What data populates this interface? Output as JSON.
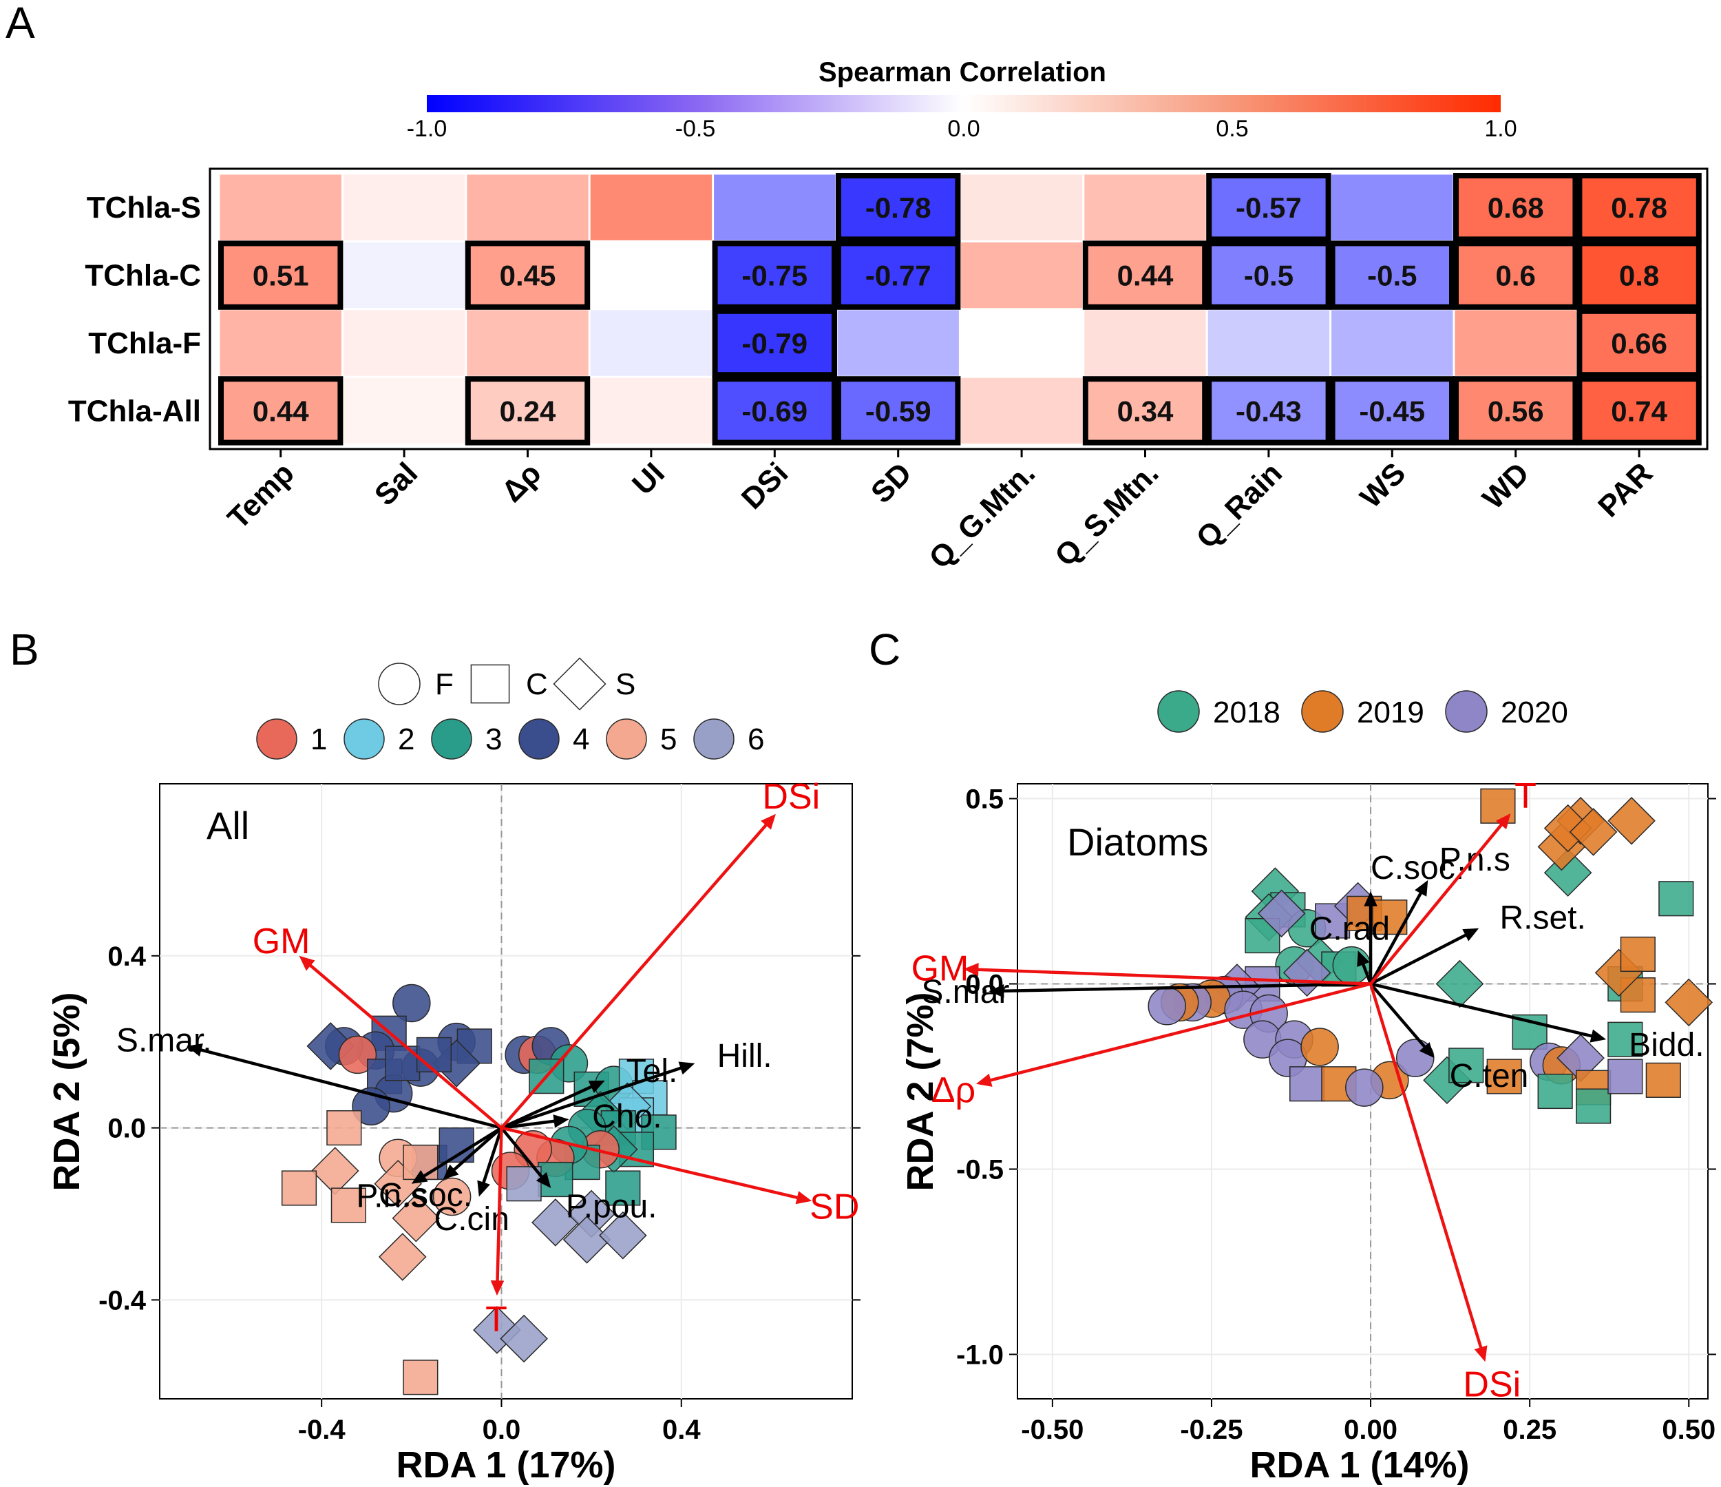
{
  "panels": {
    "a": "A",
    "b": "B",
    "c": "C"
  },
  "colors": {
    "neg": "#0000ff",
    "mid": "#ffffff",
    "pos": "#ff2a00",
    "site1": "#e8695a",
    "site2": "#6ecbe3",
    "site3": "#2a9d8a",
    "site4": "#3a4d8c",
    "site5": "#f4a88f",
    "site6": "#98a0c8",
    "y2018": "#3aaa8a",
    "y2019": "#e07b28",
    "y2020": "#8e86c6",
    "arrow_env": "#ee1111",
    "arrow_sp": "#000000"
  },
  "chart_data": [
    {
      "id": "heatmap",
      "type": "heatmap",
      "colorbar": {
        "title": "Spearman Correlation",
        "ticks": [
          "-1.0",
          "-0.5",
          "0.0",
          "0.5",
          "1.0"
        ],
        "range": [
          -1,
          1
        ]
      },
      "rows": [
        "TChla-S",
        "TChla-C",
        "TChla-F",
        "TChla-All"
      ],
      "cols": [
        "Temp",
        "Sal",
        "Δρ",
        "UI",
        "DSi",
        "SD",
        "Q_G.Mtn.",
        "Q_S.Mtn.",
        "Q_Rain",
        "WS",
        "WD",
        "PAR"
      ],
      "values": [
        [
          0.35,
          0.08,
          0.35,
          0.55,
          -0.45,
          -0.78,
          0.12,
          0.3,
          -0.57,
          -0.45,
          0.68,
          0.78
        ],
        [
          0.51,
          -0.05,
          0.45,
          0.0,
          -0.75,
          -0.77,
          0.35,
          0.44,
          -0.5,
          -0.5,
          0.6,
          0.8
        ],
        [
          0.35,
          0.08,
          0.3,
          -0.08,
          -0.79,
          -0.3,
          0.0,
          0.15,
          -0.2,
          -0.3,
          0.45,
          0.66
        ],
        [
          0.44,
          0.05,
          0.24,
          0.08,
          -0.69,
          -0.59,
          0.2,
          0.34,
          -0.43,
          -0.45,
          0.56,
          0.74
        ]
      ],
      "labels": [
        [
          null,
          null,
          null,
          null,
          null,
          "-0.78",
          null,
          null,
          "-0.57",
          null,
          "0.68",
          "0.78"
        ],
        [
          "0.51",
          null,
          "0.45",
          null,
          "-0.75",
          "-0.77",
          null,
          "0.44",
          "-0.5",
          "-0.5",
          "0.6",
          "0.8"
        ],
        [
          null,
          null,
          null,
          null,
          "-0.79",
          null,
          null,
          null,
          null,
          null,
          null,
          "0.66"
        ],
        [
          "0.44",
          null,
          "0.24",
          null,
          "-0.69",
          "-0.59",
          null,
          "0.34",
          "-0.43",
          "-0.45",
          "0.56",
          "0.74"
        ]
      ],
      "significant": [
        [
          false,
          false,
          false,
          false,
          false,
          true,
          false,
          false,
          true,
          false,
          true,
          true
        ],
        [
          true,
          false,
          true,
          false,
          true,
          true,
          false,
          true,
          true,
          true,
          true,
          true
        ],
        [
          false,
          false,
          false,
          false,
          true,
          false,
          false,
          false,
          false,
          false,
          false,
          true
        ],
        [
          true,
          false,
          true,
          false,
          true,
          true,
          false,
          true,
          true,
          true,
          true,
          true
        ]
      ]
    },
    {
      "id": "rda_all",
      "type": "scatter",
      "inset_label": "All",
      "xlabel": "RDA 1 (17%)",
      "ylabel": "RDA 2 (5%)",
      "xlim": [
        -0.76,
        0.78
      ],
      "ylim": [
        -0.63,
        0.8
      ],
      "xticks": [
        "-0.4",
        "0.0",
        "0.4"
      ],
      "xtick_values": [
        -0.4,
        0.0,
        0.4
      ],
      "yticks": [
        "0.4",
        "0.0",
        "-0.4"
      ],
      "ytick_values": [
        0.4,
        0.0,
        -0.4
      ],
      "legend_shapes": [
        "F",
        "C",
        "S"
      ],
      "legend_groups": [
        "1",
        "2",
        "3",
        "4",
        "5",
        "6"
      ],
      "env_arrows": [
        {
          "label": "DSi",
          "x": 0.61,
          "y": 0.73
        },
        {
          "label": "GM",
          "x": -0.45,
          "y": 0.4
        },
        {
          "label": "SD",
          "x": 0.69,
          "y": -0.17
        },
        {
          "label": "T",
          "x": -0.01,
          "y": -0.39
        }
      ],
      "species_arrows": [
        {
          "label": "S.mar.",
          "x": -0.7,
          "y": 0.19
        },
        {
          "label": "Hill.",
          "x": 0.43,
          "y": 0.15
        },
        {
          "label": "Tel.",
          "x": 0.23,
          "y": 0.11
        },
        {
          "label": "Cho.",
          "x": 0.15,
          "y": 0.02
        },
        {
          "label": "C.soc.",
          "x": -0.13,
          "y": -0.12
        },
        {
          "label": "C.cin",
          "x": -0.05,
          "y": -0.16
        },
        {
          "label": "P.pou.",
          "x": 0.11,
          "y": -0.14
        },
        {
          "label": "P.n.s",
          "x": -0.2,
          "y": -0.13
        }
      ],
      "points": [
        {
          "x": -0.2,
          "y": 0.29,
          "g": 4,
          "s": "F"
        },
        {
          "x": -0.25,
          "y": 0.22,
          "g": 4,
          "s": "C"
        },
        {
          "x": -0.28,
          "y": 0.18,
          "g": 4,
          "s": "F"
        },
        {
          "x": -0.35,
          "y": 0.19,
          "g": 4,
          "s": "F"
        },
        {
          "x": -0.38,
          "y": 0.19,
          "g": 4,
          "s": "S"
        },
        {
          "x": -0.32,
          "y": 0.17,
          "g": 1,
          "s": "F"
        },
        {
          "x": -0.18,
          "y": 0.14,
          "g": 4,
          "s": "F"
        },
        {
          "x": -0.1,
          "y": 0.2,
          "g": 4,
          "s": "F"
        },
        {
          "x": -0.06,
          "y": 0.19,
          "g": 4,
          "s": "C"
        },
        {
          "x": -0.1,
          "y": 0.15,
          "g": 4,
          "s": "S"
        },
        {
          "x": -0.26,
          "y": 0.12,
          "g": 4,
          "s": "C"
        },
        {
          "x": -0.24,
          "y": 0.08,
          "g": 4,
          "s": "F"
        },
        {
          "x": -0.29,
          "y": 0.05,
          "g": 4,
          "s": "F"
        },
        {
          "x": -0.22,
          "y": 0.15,
          "g": 4,
          "s": "C"
        },
        {
          "x": -0.15,
          "y": 0.17,
          "g": 4,
          "s": "C"
        },
        {
          "x": -0.16,
          "y": -0.08,
          "g": 4,
          "s": "C"
        },
        {
          "x": -0.1,
          "y": -0.04,
          "g": 4,
          "s": "C"
        },
        {
          "x": 0.05,
          "y": 0.17,
          "g": 4,
          "s": "F"
        },
        {
          "x": 0.08,
          "y": 0.17,
          "g": 1,
          "s": "F"
        },
        {
          "x": 0.11,
          "y": 0.19,
          "g": 4,
          "s": "F"
        },
        {
          "x": 0.15,
          "y": 0.15,
          "g": 3,
          "s": "F"
        },
        {
          "x": 0.1,
          "y": 0.12,
          "g": 3,
          "s": "C"
        },
        {
          "x": 0.2,
          "y": 0.09,
          "g": 3,
          "s": "C"
        },
        {
          "x": 0.25,
          "y": 0.1,
          "g": 3,
          "s": "F"
        },
        {
          "x": 0.3,
          "y": 0.12,
          "g": 2,
          "s": "C"
        },
        {
          "x": 0.33,
          "y": 0.07,
          "g": 2,
          "s": "C"
        },
        {
          "x": 0.3,
          "y": 0.03,
          "g": 2,
          "s": "C"
        },
        {
          "x": 0.28,
          "y": 0.05,
          "g": 2,
          "s": "S"
        },
        {
          "x": 0.22,
          "y": 0.03,
          "g": 3,
          "s": "S"
        },
        {
          "x": 0.26,
          "y": 0.0,
          "g": 3,
          "s": "C"
        },
        {
          "x": 0.35,
          "y": -0.01,
          "g": 3,
          "s": "C"
        },
        {
          "x": 0.3,
          "y": -0.05,
          "g": 3,
          "s": "C"
        },
        {
          "x": 0.25,
          "y": -0.05,
          "g": 3,
          "s": "S"
        },
        {
          "x": 0.19,
          "y": 0.0,
          "g": 3,
          "s": "F"
        },
        {
          "x": 0.22,
          "y": -0.05,
          "g": 1,
          "s": "F"
        },
        {
          "x": 0.18,
          "y": -0.08,
          "g": 3,
          "s": "C"
        },
        {
          "x": 0.15,
          "y": -0.04,
          "g": 3,
          "s": "F"
        },
        {
          "x": 0.12,
          "y": -0.07,
          "g": 1,
          "s": "F"
        },
        {
          "x": 0.07,
          "y": -0.05,
          "g": 1,
          "s": "F"
        },
        {
          "x": 0.02,
          "y": -0.1,
          "g": 1,
          "s": "F"
        },
        {
          "x": 0.12,
          "y": -0.12,
          "g": 3,
          "s": "C"
        },
        {
          "x": 0.27,
          "y": -0.14,
          "g": 3,
          "s": "C"
        },
        {
          "x": 0.12,
          "y": -0.22,
          "g": 6,
          "s": "S"
        },
        {
          "x": 0.2,
          "y": -0.2,
          "g": 6,
          "s": "S"
        },
        {
          "x": 0.19,
          "y": -0.26,
          "g": 6,
          "s": "S"
        },
        {
          "x": 0.27,
          "y": -0.25,
          "g": 6,
          "s": "S"
        },
        {
          "x": 0.05,
          "y": -0.13,
          "g": 6,
          "s": "C"
        },
        {
          "x": -0.01,
          "y": -0.47,
          "g": 6,
          "s": "S"
        },
        {
          "x": 0.05,
          "y": -0.49,
          "g": 6,
          "s": "S"
        },
        {
          "x": -0.35,
          "y": 0.0,
          "g": 5,
          "s": "C"
        },
        {
          "x": -0.23,
          "y": -0.07,
          "g": 5,
          "s": "F"
        },
        {
          "x": -0.37,
          "y": -0.1,
          "g": 5,
          "s": "S"
        },
        {
          "x": -0.23,
          "y": -0.13,
          "g": 5,
          "s": "S"
        },
        {
          "x": -0.45,
          "y": -0.14,
          "g": 5,
          "s": "C"
        },
        {
          "x": -0.34,
          "y": -0.18,
          "g": 5,
          "s": "C"
        },
        {
          "x": -0.19,
          "y": -0.21,
          "g": 5,
          "s": "S"
        },
        {
          "x": -0.22,
          "y": -0.3,
          "g": 5,
          "s": "S"
        },
        {
          "x": -0.11,
          "y": -0.16,
          "g": 5,
          "s": "F"
        },
        {
          "x": -0.18,
          "y": -0.08,
          "g": 5,
          "s": "C"
        },
        {
          "x": -0.18,
          "y": -0.58,
          "g": 5,
          "s": "C"
        }
      ]
    },
    {
      "id": "rda_diatoms",
      "type": "scatter",
      "inset_label": "Diatoms",
      "xlabel": "RDA 1 (14%)",
      "ylabel": "RDA 2 (7%)",
      "xlim": [
        -0.555,
        0.53
      ],
      "ylim": [
        -1.12,
        0.54
      ],
      "xticks": [
        "-0.50",
        "-0.25",
        "0.00",
        "0.25",
        "0.50"
      ],
      "xtick_values": [
        -0.5,
        -0.25,
        0.0,
        0.25,
        0.5
      ],
      "yticks": [
        "0.5",
        "0.0",
        "-0.5",
        "-1.0"
      ],
      "ytick_values": [
        0.5,
        0.0,
        -0.5,
        -1.0
      ],
      "legend_groups": [
        "2018",
        "2019",
        "2020"
      ],
      "env_arrows": [
        {
          "label": "T",
          "x": 0.22,
          "y": 0.46
        },
        {
          "label": "GM",
          "x": -0.64,
          "y": 0.04
        },
        {
          "label": "Δρ",
          "x": -0.62,
          "y": -0.27
        },
        {
          "label": "DSi",
          "x": 0.18,
          "y": -1.02
        }
      ],
      "species_arrows": [
        {
          "label": "S.mar",
          "x": -0.6,
          "y": -0.02
        },
        {
          "label": "P.n.s",
          "x": 0.09,
          "y": 0.28
        },
        {
          "label": "C.soc.",
          "x": 0.0,
          "y": 0.25
        },
        {
          "label": "C.rad",
          "x": -0.02,
          "y": 0.09
        },
        {
          "label": "R.set.",
          "x": 0.17,
          "y": 0.15
        },
        {
          "label": "C.ten",
          "x": 0.1,
          "y": -0.2
        },
        {
          "label": "Bidd.",
          "x": 0.37,
          "y": -0.15
        }
      ],
      "points": [
        {
          "x": -0.15,
          "y": 0.25,
          "g": "2018",
          "s": "S"
        },
        {
          "x": -0.13,
          "y": 0.2,
          "g": "2018",
          "s": "C"
        },
        {
          "x": -0.16,
          "y": 0.18,
          "g": "2018",
          "s": "S"
        },
        {
          "x": -0.17,
          "y": 0.13,
          "g": "2018",
          "s": "C"
        },
        {
          "x": -0.1,
          "y": 0.15,
          "g": "2018",
          "s": "F"
        },
        {
          "x": -0.06,
          "y": 0.17,
          "g": "2020",
          "s": "C"
        },
        {
          "x": -0.02,
          "y": 0.21,
          "g": "2020",
          "s": "S"
        },
        {
          "x": -0.12,
          "y": 0.05,
          "g": "2018",
          "s": "F"
        },
        {
          "x": -0.08,
          "y": 0.06,
          "g": "2018",
          "s": "S"
        },
        {
          "x": -0.05,
          "y": 0.04,
          "g": "2018",
          "s": "C"
        },
        {
          "x": -0.03,
          "y": 0.05,
          "g": "2018",
          "s": "F"
        },
        {
          "x": -0.1,
          "y": 0.03,
          "g": "2020",
          "s": "S"
        },
        {
          "x": -0.17,
          "y": 0.0,
          "g": "2020",
          "s": "C"
        },
        {
          "x": -0.21,
          "y": -0.01,
          "g": "2020",
          "s": "S"
        },
        {
          "x": -0.14,
          "y": 0.19,
          "g": "2020",
          "s": "S"
        },
        {
          "x": -0.23,
          "y": -0.03,
          "g": "2020",
          "s": "F"
        },
        {
          "x": -0.25,
          "y": -0.04,
          "g": "2019",
          "s": "F"
        },
        {
          "x": -0.28,
          "y": -0.05,
          "g": "2020",
          "s": "F"
        },
        {
          "x": -0.3,
          "y": -0.05,
          "g": "2019",
          "s": "F"
        },
        {
          "x": -0.32,
          "y": -0.06,
          "g": "2020",
          "s": "F"
        },
        {
          "x": -0.2,
          "y": -0.07,
          "g": "2020",
          "s": "F"
        },
        {
          "x": -0.16,
          "y": -0.08,
          "g": "2020",
          "s": "F"
        },
        {
          "x": -0.17,
          "y": -0.15,
          "g": "2020",
          "s": "F"
        },
        {
          "x": -0.12,
          "y": -0.15,
          "g": "2020",
          "s": "F"
        },
        {
          "x": -0.13,
          "y": -0.2,
          "g": "2020",
          "s": "F"
        },
        {
          "x": -0.01,
          "y": 0.19,
          "g": "2019",
          "s": "C"
        },
        {
          "x": 0.03,
          "y": 0.18,
          "g": "2019",
          "s": "C"
        },
        {
          "x": -0.08,
          "y": -0.17,
          "g": "2019",
          "s": "F"
        },
        {
          "x": -0.1,
          "y": -0.27,
          "g": "2020",
          "s": "C"
        },
        {
          "x": 0.03,
          "y": -0.26,
          "g": "2019",
          "s": "F"
        },
        {
          "x": -0.05,
          "y": -0.27,
          "g": "2019",
          "s": "C"
        },
        {
          "x": -0.01,
          "y": -0.28,
          "g": "2020",
          "s": "F"
        },
        {
          "x": 0.07,
          "y": -0.2,
          "g": "2020",
          "s": "F"
        },
        {
          "x": 0.12,
          "y": -0.26,
          "g": "2018",
          "s": "S"
        },
        {
          "x": 0.14,
          "y": 0.0,
          "g": "2018",
          "s": "S"
        },
        {
          "x": 0.15,
          "y": -0.22,
          "g": "2018",
          "s": "C"
        },
        {
          "x": 0.21,
          "y": -0.25,
          "g": "2019",
          "s": "C"
        },
        {
          "x": 0.25,
          "y": -0.13,
          "g": "2018",
          "s": "C"
        },
        {
          "x": 0.28,
          "y": -0.21,
          "g": "2020",
          "s": "F"
        },
        {
          "x": 0.3,
          "y": -0.22,
          "g": "2019",
          "s": "F"
        },
        {
          "x": 0.29,
          "y": -0.29,
          "g": "2018",
          "s": "C"
        },
        {
          "x": 0.33,
          "y": -0.2,
          "g": "2020",
          "s": "S"
        },
        {
          "x": 0.35,
          "y": -0.28,
          "g": "2019",
          "s": "C"
        },
        {
          "x": 0.35,
          "y": -0.33,
          "g": "2018",
          "s": "C"
        },
        {
          "x": 0.4,
          "y": -0.25,
          "g": "2020",
          "s": "C"
        },
        {
          "x": 0.46,
          "y": -0.26,
          "g": "2019",
          "s": "C"
        },
        {
          "x": 0.4,
          "y": -0.15,
          "g": "2018",
          "s": "C"
        },
        {
          "x": 0.4,
          "y": 0.0,
          "g": "2018",
          "s": "C"
        },
        {
          "x": 0.42,
          "y": -0.03,
          "g": "2019",
          "s": "C"
        },
        {
          "x": 0.39,
          "y": 0.03,
          "g": "2019",
          "s": "S"
        },
        {
          "x": 0.42,
          "y": 0.08,
          "g": "2019",
          "s": "C"
        },
        {
          "x": 0.5,
          "y": -0.05,
          "g": "2019",
          "s": "S"
        },
        {
          "x": 0.48,
          "y": 0.23,
          "g": "2018",
          "s": "C"
        },
        {
          "x": 0.31,
          "y": 0.3,
          "g": "2018",
          "s": "S"
        },
        {
          "x": 0.3,
          "y": 0.37,
          "g": "2019",
          "s": "S"
        },
        {
          "x": 0.33,
          "y": 0.44,
          "g": "2019",
          "s": "S"
        },
        {
          "x": 0.31,
          "y": 0.42,
          "g": "2019",
          "s": "S"
        },
        {
          "x": 0.41,
          "y": 0.44,
          "g": "2019",
          "s": "S"
        },
        {
          "x": 0.2,
          "y": 0.48,
          "g": "2019",
          "s": "C"
        },
        {
          "x": 0.35,
          "y": 0.41,
          "g": "2019",
          "s": "S"
        }
      ]
    }
  ]
}
